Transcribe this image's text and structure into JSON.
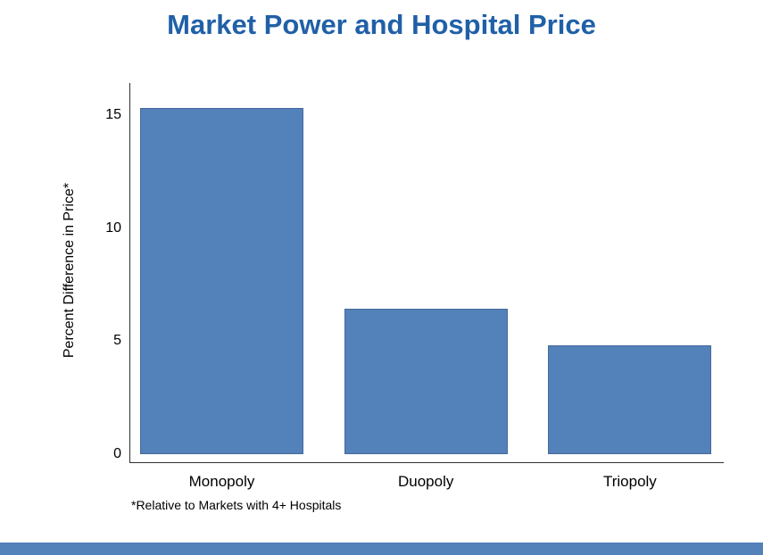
{
  "title": {
    "text": "Market Power and Hospital Price",
    "color": "#2060A7"
  },
  "footer_bar": {
    "color": "#5381BA"
  },
  "chart_data": {
    "type": "bar",
    "categories": [
      "Monopoly",
      "Duopoly",
      "Triopoly"
    ],
    "values": [
      15.3,
      6.4,
      4.8
    ],
    "title": "Market Power and Hospital Price",
    "xlabel": "",
    "ylabel": "Percent Difference in Price*",
    "footnote": "*Relative to Markets with 4+ Hospitals",
    "yticks": [
      0,
      5,
      10,
      15
    ],
    "ylim": [
      0,
      16.4
    ],
    "grid": false,
    "legend": "none",
    "bar_color": "#5381BA",
    "bar_border_color": "#47699C",
    "axis_color": "#303030",
    "text_color": "#000000"
  }
}
